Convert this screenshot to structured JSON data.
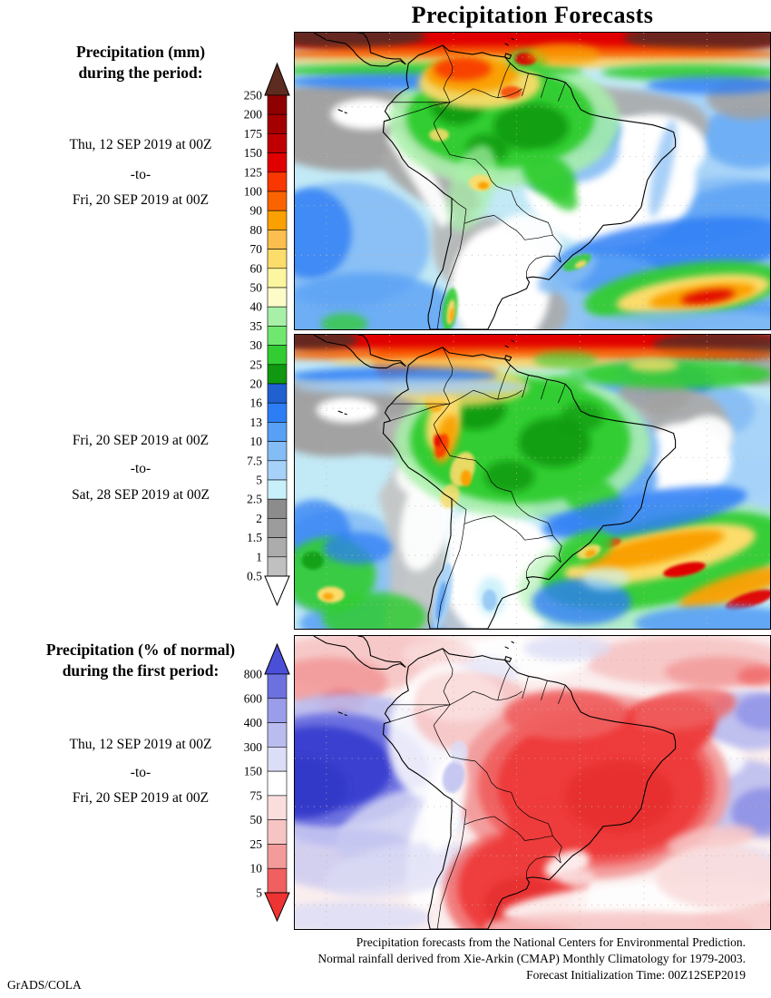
{
  "title": "Precipitation Forecasts",
  "left_column": {
    "block1": {
      "heading1": "Precipitation (mm)",
      "heading2": "during the period:",
      "date_from": "Thu, 12 SEP 2019 at 00Z",
      "separator": "-to-",
      "date_to": "Fri, 20 SEP 2019 at 00Z"
    },
    "block2": {
      "date_from": "Fri, 20 SEP 2019 at 00Z",
      "separator": "-to-",
      "date_to": "Sat, 28 SEP 2019 at 00Z"
    },
    "block3": {
      "heading1": "Precipitation (% of normal)",
      "heading2": "during the first period:",
      "date_from": "Thu, 12 SEP 2019 at 00Z",
      "separator": "-to-",
      "date_to": "Fri, 20 SEP 2019 at 00Z"
    }
  },
  "colorbars": {
    "mm": {
      "unit": "mm",
      "ticks": [
        250,
        200,
        175,
        150,
        125,
        100,
        90,
        80,
        70,
        60,
        50,
        40,
        35,
        30,
        25,
        20,
        16,
        13,
        10,
        7.5,
        5,
        2.5,
        2,
        1.5,
        1,
        0.5
      ],
      "colors": [
        "#8f0000",
        "#a40000",
        "#c00000",
        "#e00000",
        "#f83800",
        "#fa6400",
        "#faa000",
        "#fcbe4e",
        "#fcdc6a",
        "#fdf6a0",
        "#fdfcc8",
        "#a8f0a8",
        "#70e870",
        "#32cd32",
        "#109810",
        "#2060d0",
        "#2d7ef5",
        "#58a0f5",
        "#84bcf5",
        "#a6d2fa",
        "#c8f0fa",
        "#8c8c8c",
        "#9c9c9c",
        "#acacac",
        "#c0c0c0"
      ],
      "arrow_top": "#5e2b20",
      "arrow_bottom": "#ffffff"
    },
    "pct": {
      "unit": "% of normal",
      "ticks": [
        800,
        600,
        400,
        300,
        150,
        75,
        50,
        25,
        10,
        5
      ],
      "colors": [
        "#6d71e0",
        "#9a9de9",
        "#babcf0",
        "#dcddf6",
        "#ffffff",
        "#fadddd",
        "#f7c4c4",
        "#f39a9a",
        "#f06060"
      ],
      "arrow_top": "#4b4fd8",
      "arrow_bottom": "#ee3333"
    }
  },
  "footer": {
    "line1": "Precipitation forecasts from the National Centers for Environmental Prediction.",
    "line2": "Normal rainfall derived from Xie-Arkin (CMAP) Monthly Climatology for 1979-2003.",
    "line3": "Forecast Initialization Time: 00Z12SEP2019",
    "credit": "GrADS/COLA"
  }
}
